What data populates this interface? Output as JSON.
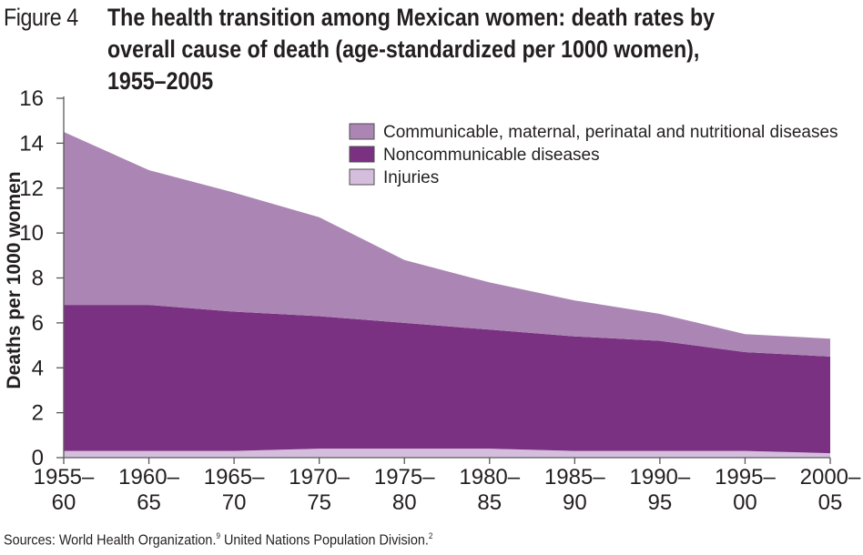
{
  "figure_label": "Figure 4",
  "title_lines": [
    "The health transition among Mexican women: death rates by",
    "overall cause of death (age-standardized per 1000 women),",
    "1955–2005"
  ],
  "source": {
    "part1": "Sources: World Health Organization.",
    "ref1": "9",
    "part2": " United Nations Population Division.",
    "ref2": "2"
  },
  "chart_data": {
    "type": "area",
    "stacked": true,
    "title": "The health transition among Mexican women: death rates by overall cause of death (age-standardized per 1000 women), 1955–2005",
    "xlabel": "",
    "ylabel": "Deaths per 1000 women",
    "ylim": [
      0,
      16
    ],
    "yticks": [
      0,
      2,
      4,
      6,
      8,
      10,
      12,
      14,
      16
    ],
    "categories": [
      [
        "1955–",
        "60"
      ],
      [
        "1960–",
        "65"
      ],
      [
        "1965–",
        "70"
      ],
      [
        "1970–",
        "75"
      ],
      [
        "1975–",
        "80"
      ],
      [
        "1980–",
        "85"
      ],
      [
        "1985–",
        "90"
      ],
      [
        "1990–",
        "95"
      ],
      [
        "1995–",
        "00"
      ],
      [
        "2000–",
        "05"
      ]
    ],
    "series": [
      {
        "name": "Injuries",
        "color": "#d5bedd",
        "values": [
          0.3,
          0.3,
          0.3,
          0.4,
          0.4,
          0.4,
          0.3,
          0.3,
          0.3,
          0.2
        ]
      },
      {
        "name": "Noncommunicable diseases",
        "color": "#7b3182",
        "values": [
          6.5,
          6.5,
          6.2,
          5.9,
          5.6,
          5.3,
          5.1,
          4.9,
          4.4,
          4.3
        ]
      },
      {
        "name": "Communicable, maternal, perinatal and nutritional diseases",
        "color": "#ab86b4",
        "values": [
          7.7,
          6.0,
          5.3,
          4.4,
          2.8,
          2.1,
          1.6,
          1.2,
          0.8,
          0.8
        ]
      }
    ],
    "legend_order": [
      "Communicable, maternal, perinatal and nutritional diseases",
      "Noncommunicable diseases",
      "Injuries"
    ],
    "legend_position": "top-right",
    "grid": false,
    "axis_color": "#58595b",
    "text_color": "#231f20"
  }
}
